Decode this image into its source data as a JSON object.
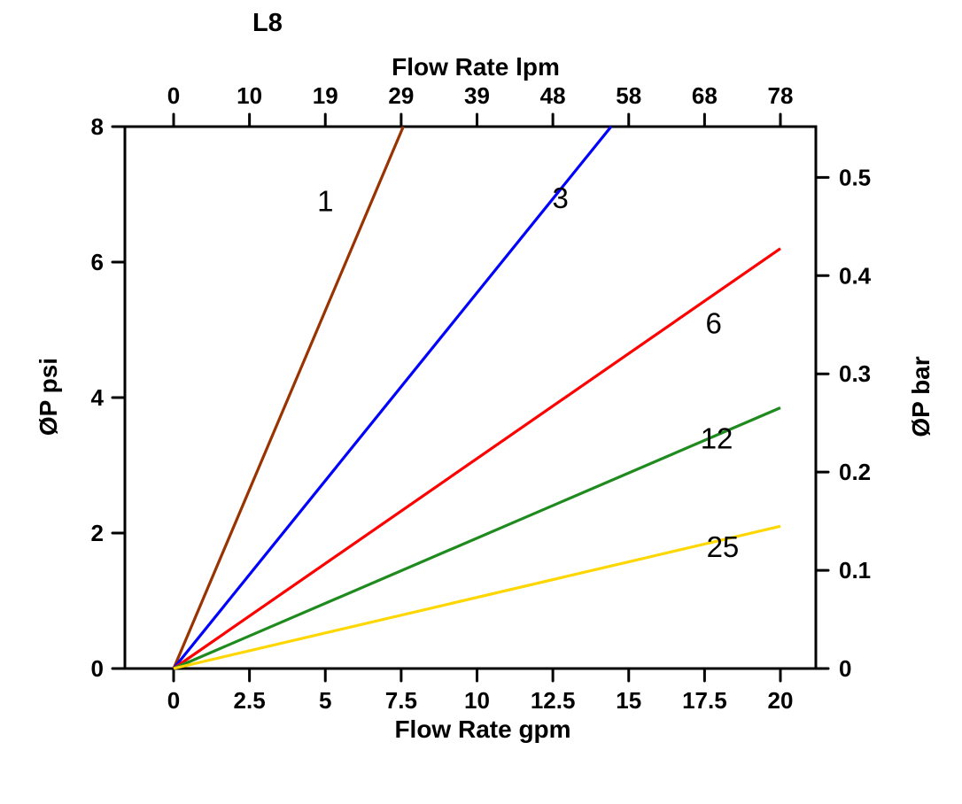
{
  "chart_data": {
    "type": "line",
    "title": "L8",
    "x_bottom": {
      "label": "Flow Rate gpm",
      "ticks": [
        "0",
        "2.5",
        "5",
        "7.5",
        "10",
        "12.5",
        "15",
        "17.5",
        "20"
      ],
      "tick_values": [
        0,
        2.5,
        5,
        7.5,
        10,
        12.5,
        15,
        17.5,
        20
      ],
      "range": [
        0,
        20
      ]
    },
    "x_top": {
      "label": "Flow Rate lpm",
      "ticks": [
        "0",
        "10",
        "19",
        "29",
        "39",
        "48",
        "58",
        "68",
        "78"
      ]
    },
    "y_left": {
      "label": "ØP psi",
      "ticks": [
        "0",
        "2",
        "4",
        "6",
        "8"
      ],
      "tick_values": [
        0,
        2,
        4,
        6,
        8
      ],
      "range": [
        0,
        8
      ]
    },
    "y_right": {
      "label": "ØP bar",
      "ticks": [
        "0",
        "0.1",
        "0.2",
        "0.3",
        "0.4",
        "0.5"
      ],
      "tick_values": [
        0,
        0.1,
        0.2,
        0.3,
        0.4,
        0.5
      ],
      "psi_per_bar": 14.5
    },
    "grid": false,
    "legend": "inline-labels",
    "series": [
      {
        "name": "1",
        "color": "#993300",
        "points": [
          [
            0,
            0
          ],
          [
            7.57,
            8
          ]
        ],
        "label_pos": [
          5.0,
          6.75
        ]
      },
      {
        "name": "3",
        "color": "#0000ff",
        "points": [
          [
            0,
            0
          ],
          [
            14.42,
            8
          ]
        ],
        "label_pos": [
          12.75,
          6.8
        ]
      },
      {
        "name": "6",
        "color": "#ff0000",
        "points": [
          [
            0,
            0
          ],
          [
            20,
            6.2
          ]
        ],
        "label_pos": [
          17.8,
          4.95
        ]
      },
      {
        "name": "12",
        "color": "#1f8b1f",
        "points": [
          [
            0,
            0
          ],
          [
            20,
            3.85
          ]
        ],
        "label_pos": [
          17.9,
          3.25
        ]
      },
      {
        "name": "25",
        "color": "#ffd700",
        "points": [
          [
            0,
            0
          ],
          [
            20,
            2.1
          ]
        ],
        "label_pos": [
          18.1,
          1.65
        ]
      }
    ]
  }
}
